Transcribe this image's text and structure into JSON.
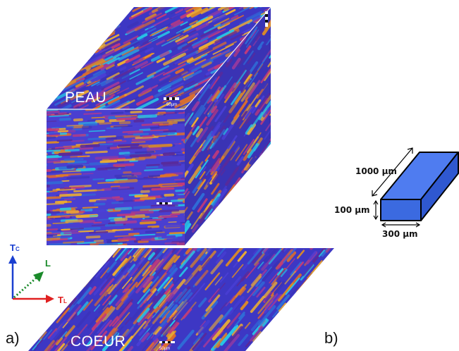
{
  "labels": {
    "top_face": "PEAU",
    "bottom_section": "COEUR",
    "panel_a": "a)",
    "panel_b": "b)"
  },
  "axes": {
    "tc": {
      "main": "T",
      "sub": "C",
      "color": "#1a3fd0"
    },
    "l": {
      "main": "L",
      "color": "#1a8a2a"
    },
    "tl": {
      "main": "T",
      "sub": "L",
      "color": "#e02020"
    }
  },
  "dimensions": {
    "length": "1000 µm",
    "height": "100 µm",
    "width": "300 µm"
  },
  "colors": {
    "grain_palette": [
      "#3b33b8",
      "#4a3fd6",
      "#2f6fd8",
      "#27c6e6",
      "#e0702a",
      "#d98a2a",
      "#9b3a9e",
      "#c33a7a",
      "#5a2a9a",
      "#f0b030"
    ],
    "box_blue": "#3b6ae0"
  }
}
